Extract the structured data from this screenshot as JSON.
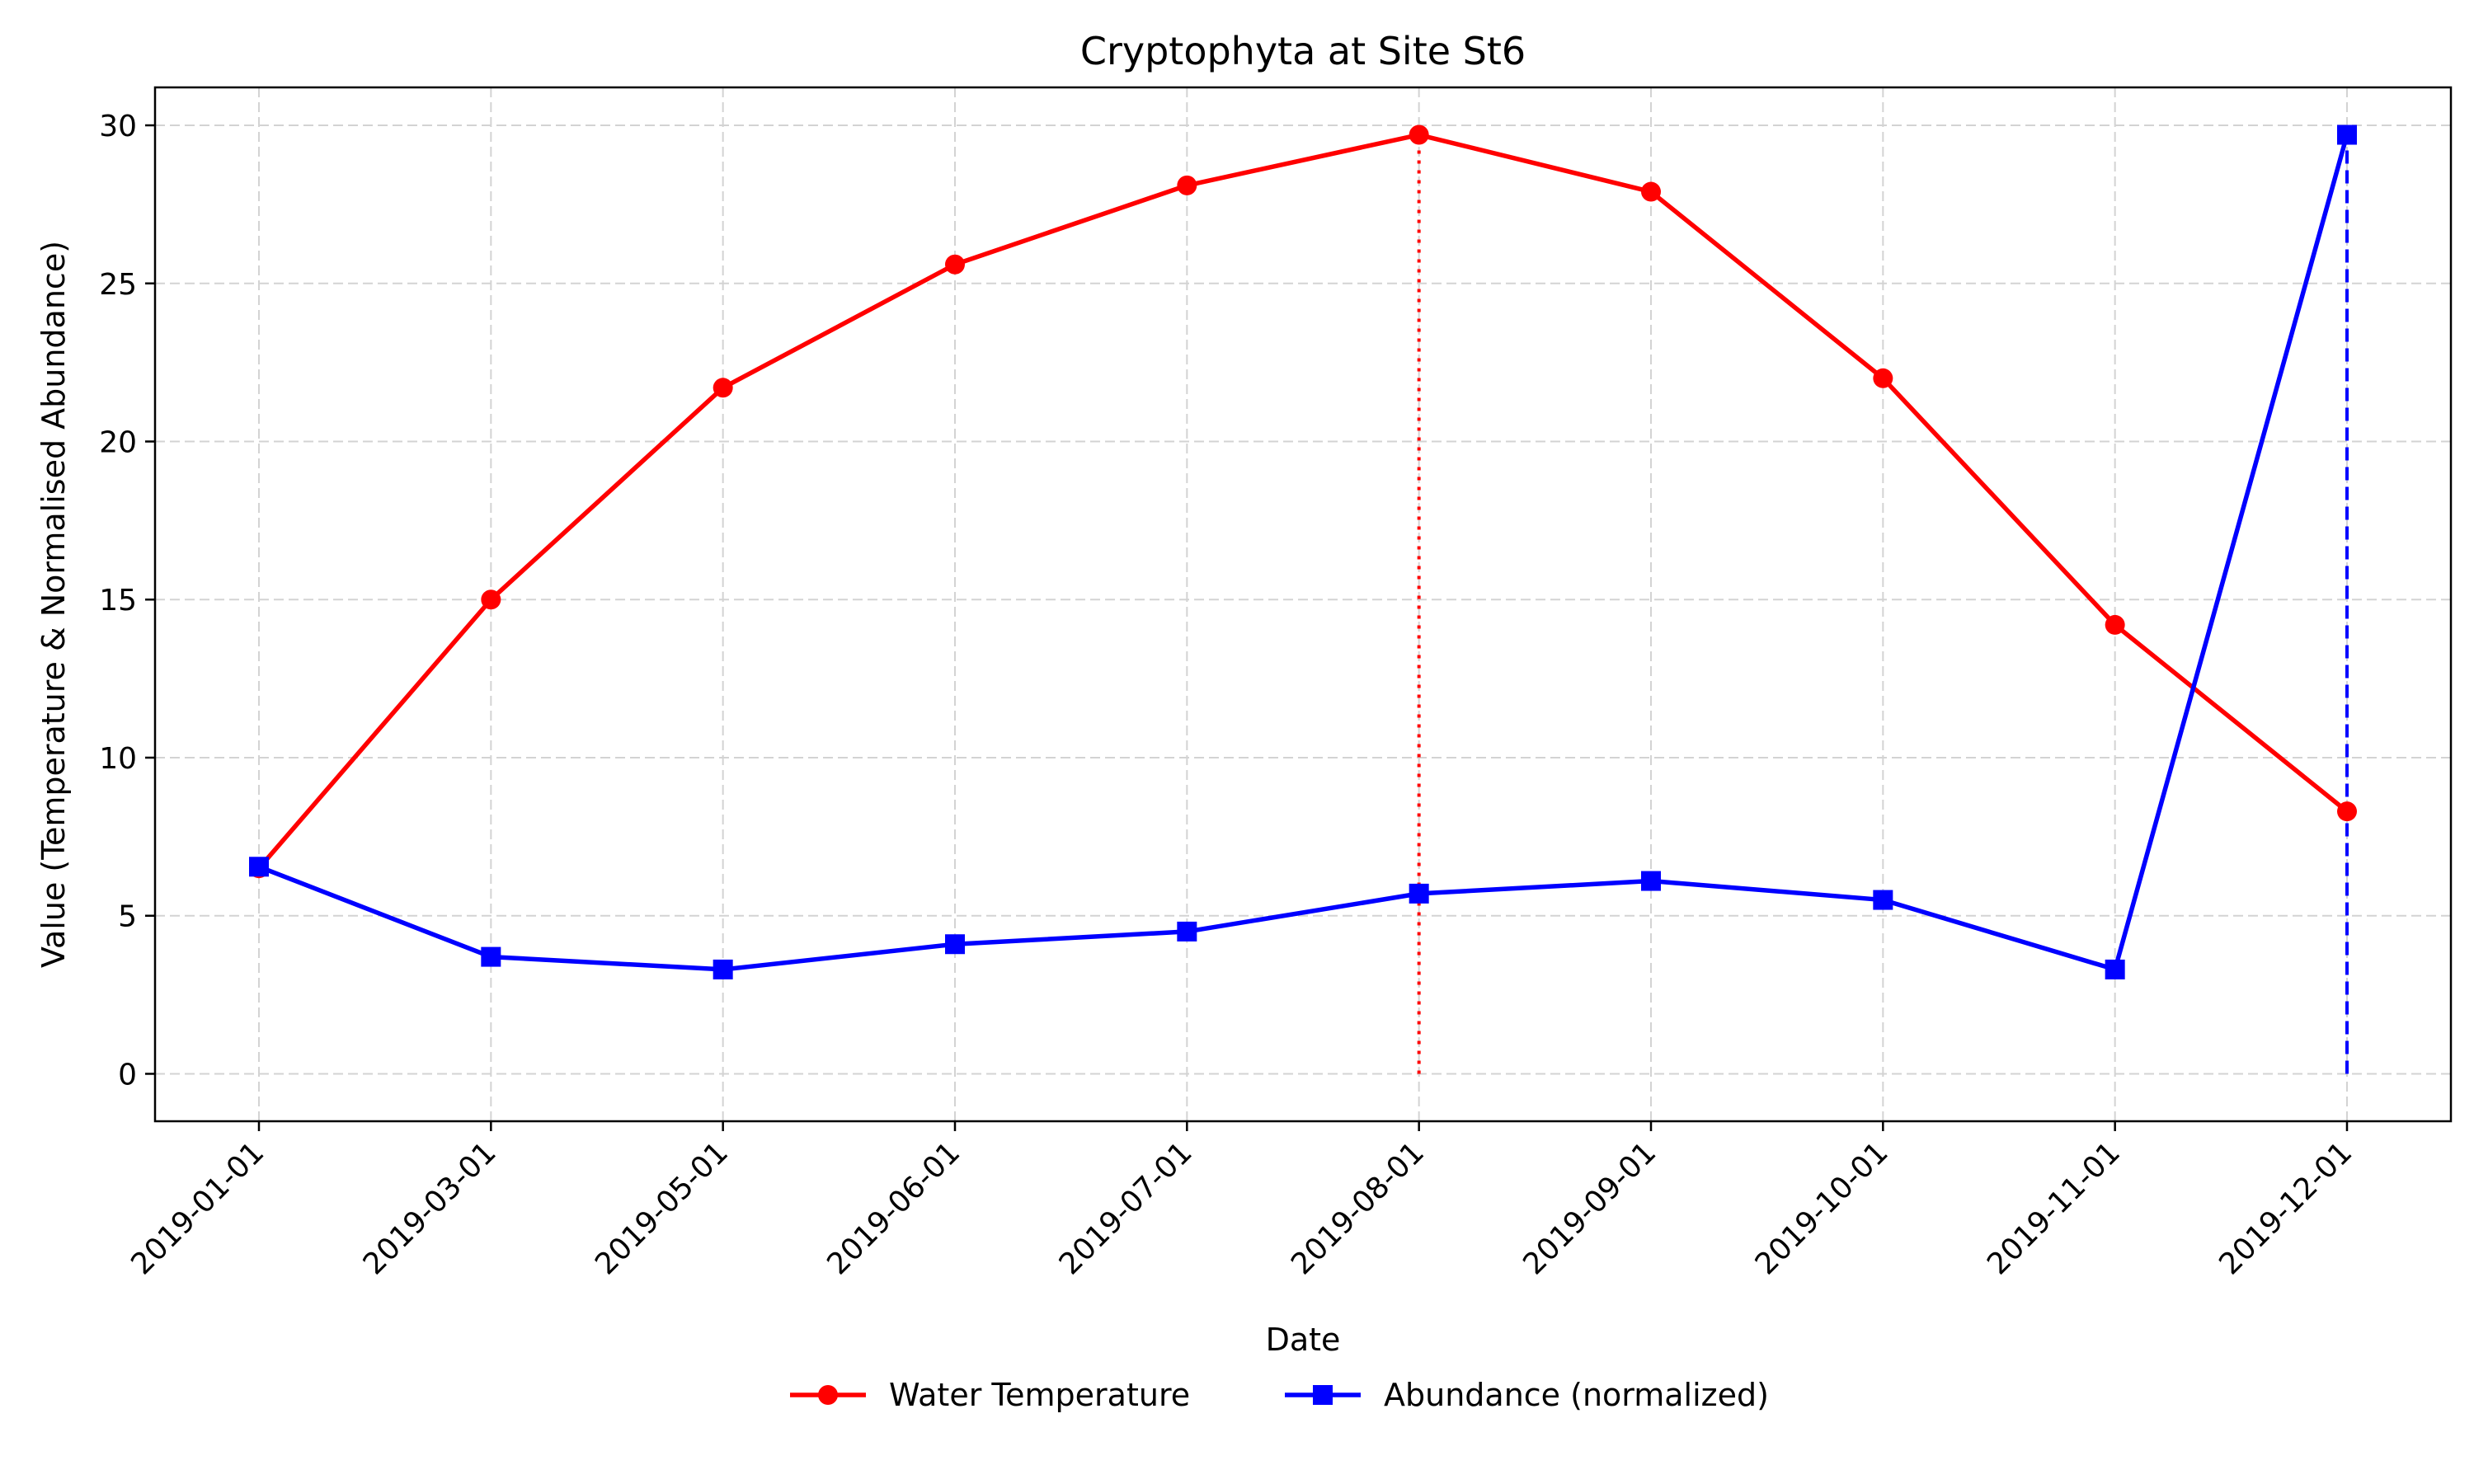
{
  "chart_data": {
    "type": "line",
    "title": "Cryptophyta at Site St6",
    "xlabel": "Date",
    "ylabel": "Value (Temperature & Normalised Abundance)",
    "categories": [
      "2019-01-01",
      "2019-03-01",
      "2019-05-01",
      "2019-06-01",
      "2019-07-01",
      "2019-08-01",
      "2019-09-01",
      "2019-10-01",
      "2019-11-01",
      "2019-12-01"
    ],
    "ylim": [
      -1.5,
      31.2
    ],
    "yticks": [
      0,
      5,
      10,
      15,
      20,
      25,
      30
    ],
    "grid": true,
    "legend_position": "bottom-center",
    "series": [
      {
        "name": "Water Temperature",
        "color": "#ff0000",
        "marker": "circle",
        "values": [
          6.5,
          15.0,
          21.7,
          25.6,
          28.1,
          29.7,
          27.9,
          22.0,
          14.2,
          8.3
        ]
      },
      {
        "name": "Abundance (normalized)",
        "color": "#0000ff",
        "marker": "square",
        "values": [
          6.55,
          3.7,
          3.3,
          4.1,
          4.5,
          5.7,
          6.1,
          5.5,
          3.3,
          29.7
        ]
      }
    ],
    "reference_lines": [
      {
        "x": "2019-08-01",
        "y_from": 0,
        "y_to": 29.7,
        "color": "#ff0000",
        "style": "dotted"
      },
      {
        "x": "2019-12-01",
        "y_from": 0,
        "y_to": 29.7,
        "color": "#0000ff",
        "style": "dashed"
      }
    ]
  }
}
